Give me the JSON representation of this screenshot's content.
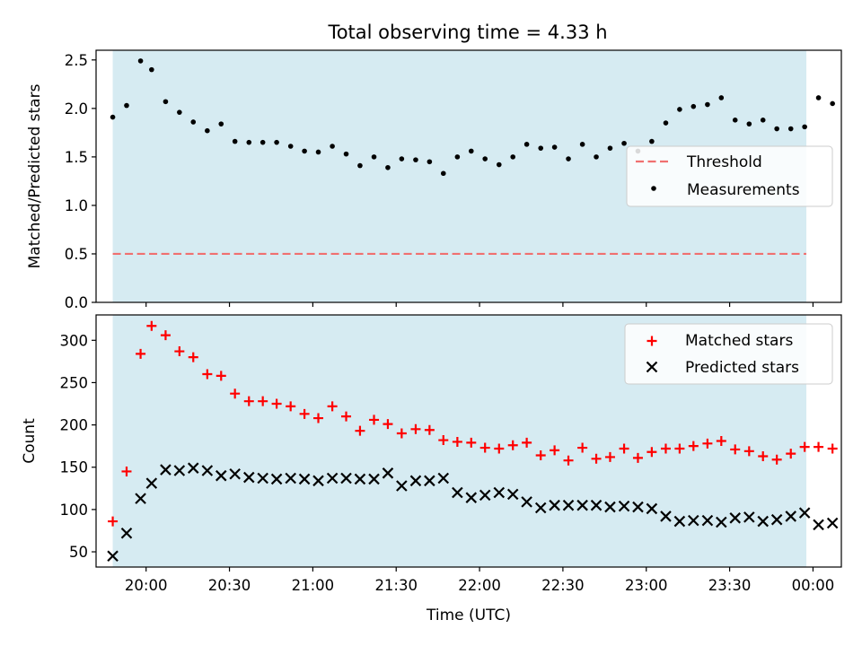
{
  "figure_title": "Total observing time = 4.33 h",
  "chart_data": [
    {
      "type": "scatter",
      "panel": "top",
      "ylabel": "Matched/Predicted stars",
      "ylim": [
        0,
        2.6
      ],
      "yticks": [
        0.0,
        0.5,
        1.0,
        1.5,
        2.0,
        2.5
      ],
      "ytick_labels": [
        "0.0",
        "0.5",
        "1.0",
        "1.5",
        "2.0",
        "2.5"
      ],
      "threshold": 0.5,
      "threshold_color": "#f07070",
      "shade_color": "#add8e6",
      "grid": false,
      "legend_position": "center-right",
      "legend": [
        "Threshold",
        "Measurements"
      ],
      "series": [
        {
          "name": "Measurements",
          "marker": "dot",
          "color": "#000000",
          "values": [
            1.91,
            2.03,
            2.49,
            2.4,
            2.07,
            1.96,
            1.86,
            1.77,
            1.84,
            1.66,
            1.65,
            1.65,
            1.65,
            1.61,
            1.56,
            1.55,
            1.61,
            1.53,
            1.41,
            1.5,
            1.39,
            1.48,
            1.47,
            1.45,
            1.33,
            1.5,
            1.56,
            1.48,
            1.42,
            1.5,
            1.63,
            1.59,
            1.6,
            1.48,
            1.63,
            1.5,
            1.59,
            1.64,
            1.56,
            1.66,
            1.85,
            1.99,
            2.02,
            2.04,
            2.11,
            1.88,
            1.84,
            1.88,
            1.79,
            1.79,
            1.81,
            2.11,
            2.05
          ]
        }
      ]
    },
    {
      "type": "scatter",
      "panel": "bottom",
      "xlabel": "Time (UTC)",
      "ylabel": "Count",
      "ylim": [
        32,
        330
      ],
      "yticks": [
        50,
        100,
        150,
        200,
        250,
        300
      ],
      "ytick_labels": [
        "50",
        "100",
        "150",
        "200",
        "250",
        "300"
      ],
      "xticks": [
        "20:00",
        "20:30",
        "21:00",
        "21:30",
        "22:00",
        "22:30",
        "23:00",
        "23:30",
        "00:00"
      ],
      "xtick_hours": [
        20.0,
        20.5,
        21.0,
        21.5,
        22.0,
        22.5,
        23.0,
        23.5,
        24.0
      ],
      "xlim_hours": [
        19.7,
        24.17
      ],
      "shade_hours": [
        19.8,
        23.96
      ],
      "grid": false,
      "legend_position": "top-right",
      "legend": [
        "Matched stars",
        "Predicted stars"
      ],
      "x_hours": [
        19.8,
        19.883,
        19.967,
        20.033,
        20.117,
        20.2,
        20.283,
        20.367,
        20.45,
        20.533,
        20.617,
        20.7,
        20.783,
        20.867,
        20.95,
        21.033,
        21.117,
        21.2,
        21.283,
        21.367,
        21.45,
        21.533,
        21.617,
        21.7,
        21.783,
        21.867,
        21.95,
        22.033,
        22.117,
        22.2,
        22.283,
        22.367,
        22.45,
        22.533,
        22.617,
        22.7,
        22.783,
        22.867,
        22.95,
        23.033,
        23.117,
        23.2,
        23.283,
        23.367,
        23.45,
        23.533,
        23.617,
        23.7,
        23.783,
        23.867,
        23.95,
        24.033,
        24.117
      ],
      "series": [
        {
          "name": "Matched stars",
          "marker": "plus",
          "color": "#ff0000",
          "values": [
            86,
            145,
            284,
            317,
            306,
            287,
            280,
            260,
            258,
            237,
            228,
            228,
            225,
            222,
            213,
            208,
            222,
            210,
            193,
            206,
            201,
            190,
            195,
            194,
            182,
            180,
            179,
            173,
            172,
            176,
            179,
            164,
            170,
            158,
            173,
            160,
            162,
            172,
            161,
            168,
            172,
            172,
            175,
            178,
            181,
            171,
            169,
            163,
            159,
            166,
            174,
            174,
            172
          ]
        },
        {
          "name": "Predicted stars",
          "marker": "x",
          "color": "#000000",
          "values": [
            45,
            72,
            113,
            131,
            147,
            146,
            149,
            146,
            140,
            142,
            138,
            137,
            136,
            137,
            136,
            134,
            137,
            137,
            136,
            136,
            143,
            128,
            134,
            134,
            137,
            120,
            114,
            117,
            120,
            118,
            109,
            102,
            105,
            105,
            105,
            105,
            103,
            104,
            103,
            101,
            92,
            86,
            87,
            87,
            85,
            90,
            91,
            86,
            88,
            92,
            96,
            82,
            84
          ]
        }
      ]
    }
  ]
}
